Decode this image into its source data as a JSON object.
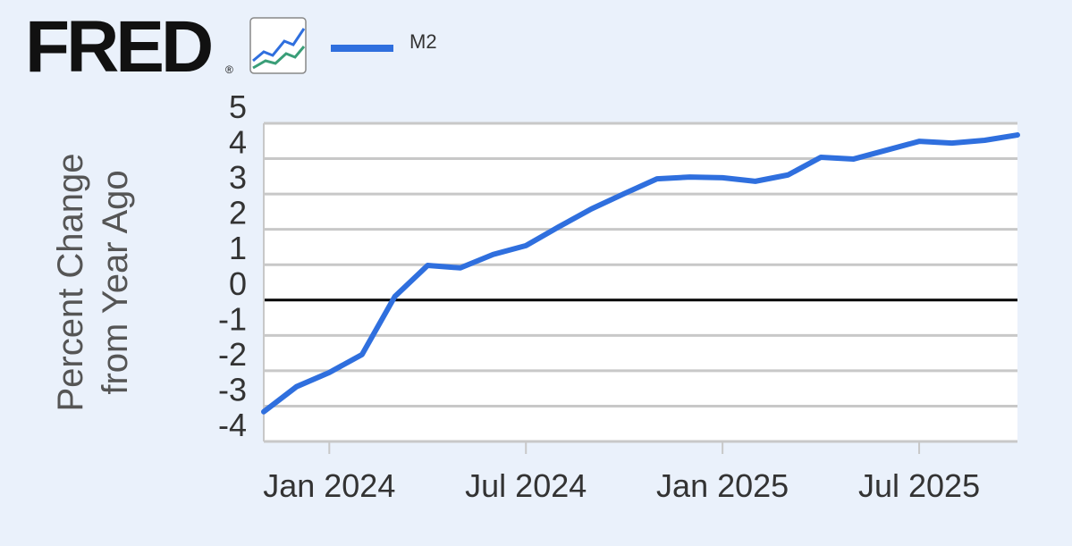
{
  "logo": "FRED",
  "logo_mark": "®",
  "chart_data": {
    "type": "line",
    "ylabel": [
      "Percent Change",
      "from Year Ago"
    ],
    "x": [
      "2023-11",
      "2023-12",
      "2024-01",
      "2024-02",
      "2024-03",
      "2024-04",
      "2024-05",
      "2024-06",
      "2024-07",
      "2024-08",
      "2024-09",
      "2024-10",
      "2024-11",
      "2024-12",
      "2025-01",
      "2025-02",
      "2025-03",
      "2025-04",
      "2025-05",
      "2025-06",
      "2025-07",
      "2025-08",
      "2025-09",
      "2025-10"
    ],
    "series": [
      {
        "name": "M2",
        "color": "#2f6fde",
        "values": [
          -3.16,
          -2.45,
          -2.05,
          -1.54,
          0.1,
          0.98,
          0.91,
          1.29,
          1.54,
          2.07,
          2.58,
          3.01,
          3.43,
          3.48,
          3.46,
          3.36,
          3.54,
          4.04,
          3.99,
          4.24,
          4.49,
          4.44,
          4.52,
          4.67
        ]
      }
    ],
    "xlim": [
      "2023-11",
      "2025-10"
    ],
    "xticks": [
      {
        "value": "2024-01",
        "label": "Jan 2024"
      },
      {
        "value": "2024-07",
        "label": "Jul 2024"
      },
      {
        "value": "2025-01",
        "label": "Jan 2025"
      },
      {
        "value": "2025-07",
        "label": "Jul 2025"
      }
    ],
    "ylim": [
      -4,
      5
    ],
    "yticks": [
      -4,
      -3,
      -2,
      -1,
      0,
      1,
      2,
      3,
      4,
      5
    ],
    "grid": true
  }
}
